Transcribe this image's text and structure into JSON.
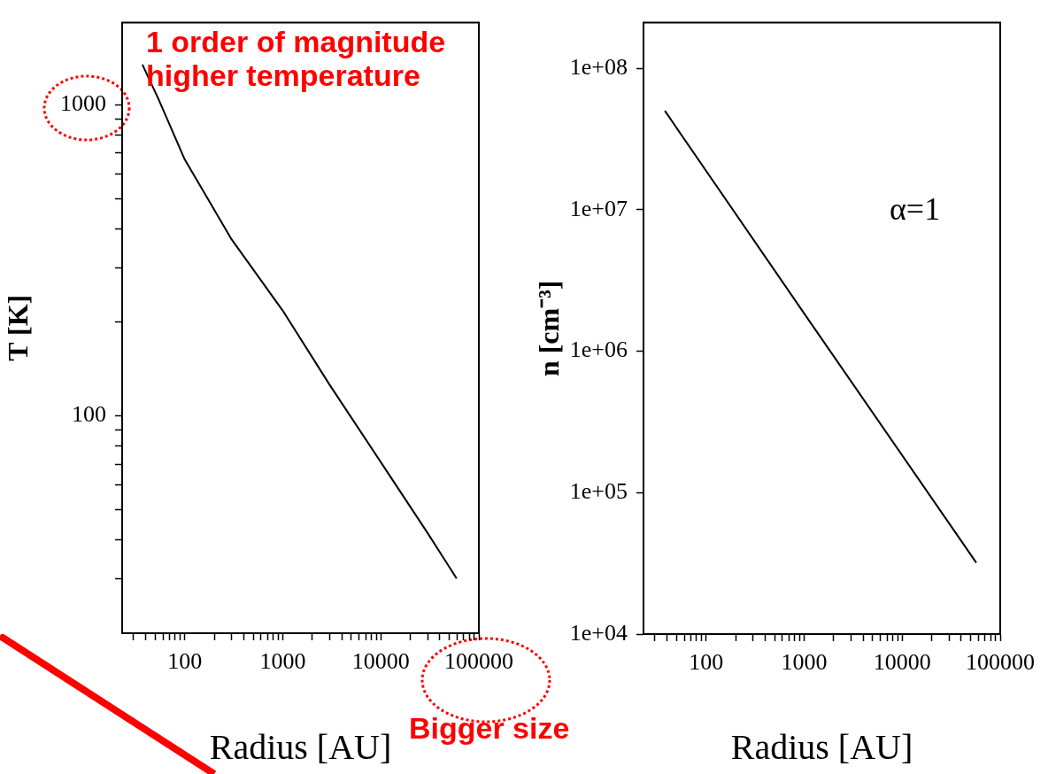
{
  "chart_data": [
    {
      "type": "line",
      "xlabel": "Radius [AU]",
      "ylabel": "T [K]",
      "log": "xy",
      "grid": false,
      "legend": false,
      "marker": "none",
      "line_style": "solid",
      "xlim": [
        23,
        100000
      ],
      "ylim": [
        20,
        1840
      ],
      "xticks": [
        {
          "value": 30,
          "label": null
        },
        {
          "value": 40,
          "label": null
        },
        {
          "value": 50,
          "label": null
        },
        {
          "value": 60,
          "label": null
        },
        {
          "value": 70,
          "label": null
        },
        {
          "value": 80,
          "label": null
        },
        {
          "value": 90,
          "label": null
        },
        100,
        {
          "value": 200,
          "label": null
        },
        {
          "value": 300,
          "label": null
        },
        {
          "value": 400,
          "label": null
        },
        {
          "value": 500,
          "label": null
        },
        {
          "value": 600,
          "label": null
        },
        {
          "value": 700,
          "label": null
        },
        {
          "value": 800,
          "label": null
        },
        {
          "value": 900,
          "label": null
        },
        1000,
        {
          "value": 2000,
          "label": null
        },
        {
          "value": 3000,
          "label": null
        },
        {
          "value": 4000,
          "label": null
        },
        {
          "value": 5000,
          "label": null
        },
        {
          "value": 6000,
          "label": null
        },
        {
          "value": 7000,
          "label": null
        },
        {
          "value": 8000,
          "label": null
        },
        {
          "value": 9000,
          "label": null
        },
        10000,
        {
          "value": 20000,
          "label": null
        },
        {
          "value": 30000,
          "label": null
        },
        {
          "value": 40000,
          "label": null
        },
        {
          "value": 50000,
          "label": null
        },
        {
          "value": 60000,
          "label": null
        },
        {
          "value": 70000,
          "label": null
        },
        {
          "value": 80000,
          "label": null
        },
        {
          "value": 90000,
          "label": null
        },
        100000
      ],
      "yticks": [
        {
          "value": 30,
          "label": null
        },
        {
          "value": 40,
          "label": null
        },
        {
          "value": 50,
          "label": null
        },
        {
          "value": 60,
          "label": null
        },
        {
          "value": 70,
          "label": null
        },
        {
          "value": 80,
          "label": null
        },
        {
          "value": 90,
          "label": null
        },
        100,
        {
          "value": 200,
          "label": null
        },
        {
          "value": 300,
          "label": null
        },
        {
          "value": 400,
          "label": null
        },
        {
          "value": 500,
          "label": null
        },
        {
          "value": 600,
          "label": null
        },
        {
          "value": 700,
          "label": null
        },
        {
          "value": 800,
          "label": null
        },
        {
          "value": 900,
          "label": null
        },
        1000
      ],
      "x": [
        37,
        54,
        100,
        300,
        1000,
        3000,
        10000,
        30000,
        59300
      ],
      "series": [
        {
          "color": "#000000",
          "values": [
            1350,
            1045,
            668,
            370,
            218,
            126,
            71,
            42,
            30
          ]
        }
      ],
      "annotations": [
        "1 order of magnitude higher temperature",
        "Bigger size"
      ]
    },
    {
      "type": "line",
      "xlabel": "Radius [AU]",
      "ylabel": "n [cm⁻³]",
      "log": "xy",
      "grid": false,
      "legend": false,
      "marker": "none",
      "line_style": "solid",
      "xlim": [
        23,
        100000
      ],
      "ylim": [
        10000,
        210000000
      ],
      "xticks": [
        {
          "value": 30,
          "label": null
        },
        {
          "value": 40,
          "label": null
        },
        {
          "value": 50,
          "label": null
        },
        {
          "value": 60,
          "label": null
        },
        {
          "value": 70,
          "label": null
        },
        {
          "value": 80,
          "label": null
        },
        {
          "value": 90,
          "label": null
        },
        100,
        {
          "value": 200,
          "label": null
        },
        {
          "value": 300,
          "label": null
        },
        {
          "value": 400,
          "label": null
        },
        {
          "value": 500,
          "label": null
        },
        {
          "value": 600,
          "label": null
        },
        {
          "value": 700,
          "label": null
        },
        {
          "value": 800,
          "label": null
        },
        {
          "value": 900,
          "label": null
        },
        1000,
        {
          "value": 2000,
          "label": null
        },
        {
          "value": 3000,
          "label": null
        },
        {
          "value": 4000,
          "label": null
        },
        {
          "value": 5000,
          "label": null
        },
        {
          "value": 6000,
          "label": null
        },
        {
          "value": 7000,
          "label": null
        },
        {
          "value": 8000,
          "label": null
        },
        {
          "value": 9000,
          "label": null
        },
        10000,
        {
          "value": 20000,
          "label": null
        },
        {
          "value": 30000,
          "label": null
        },
        {
          "value": 40000,
          "label": null
        },
        {
          "value": 50000,
          "label": null
        },
        {
          "value": 60000,
          "label": null
        },
        {
          "value": 70000,
          "label": null
        },
        {
          "value": 80000,
          "label": null
        },
        {
          "value": 90000,
          "label": null
        },
        100000
      ],
      "yticks": [
        {
          "value": 10000,
          "label": "1e+04"
        },
        {
          "value": 100000,
          "label": "1e+05"
        },
        {
          "value": 1000000,
          "label": "1e+06"
        },
        {
          "value": 10000000,
          "label": "1e+07"
        },
        {
          "value": 100000000,
          "label": "1e+08"
        }
      ],
      "x": [
        38,
        1000,
        57000
      ],
      "series": [
        {
          "color": "#000000",
          "values": [
            50000000,
            1850000,
            32000
          ]
        }
      ],
      "annotations": [
        "α=1"
      ]
    }
  ]
}
